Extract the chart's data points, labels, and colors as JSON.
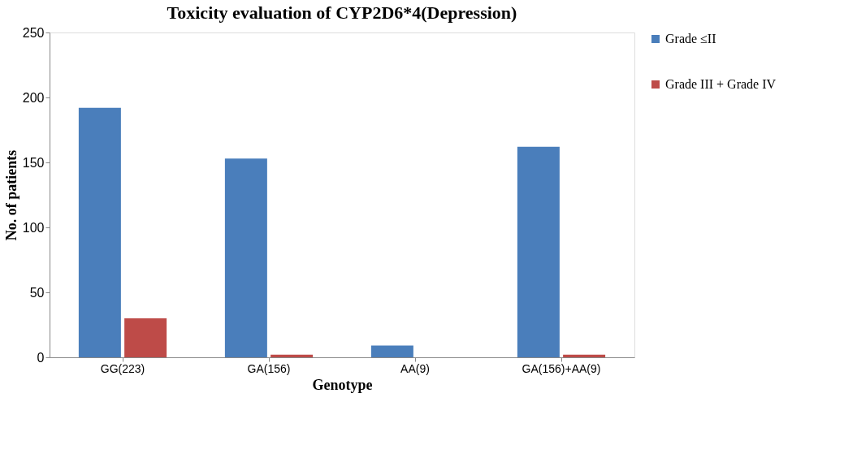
{
  "chart_data": {
    "type": "bar",
    "title": "Toxicity evaluation of CYP2D6*4(Depression)",
    "xlabel": "Genotype",
    "ylabel": "No. of patients",
    "categories": [
      "GG(223)",
      "GA(156)",
      "AA(9)",
      "GA(156)+AA(9)"
    ],
    "series": [
      {
        "name": "Grade ≤II",
        "color": "#4a7ebb",
        "values": [
          192,
          153,
          9,
          162
        ]
      },
      {
        "name": "Grade III + Grade IV",
        "color": "#be4b48",
        "values": [
          30,
          2,
          0,
          2
        ]
      }
    ],
    "ylim": [
      0,
      250
    ],
    "yticks": [
      0,
      50,
      100,
      150,
      200,
      250
    ],
    "grid": false,
    "legend": "right"
  }
}
